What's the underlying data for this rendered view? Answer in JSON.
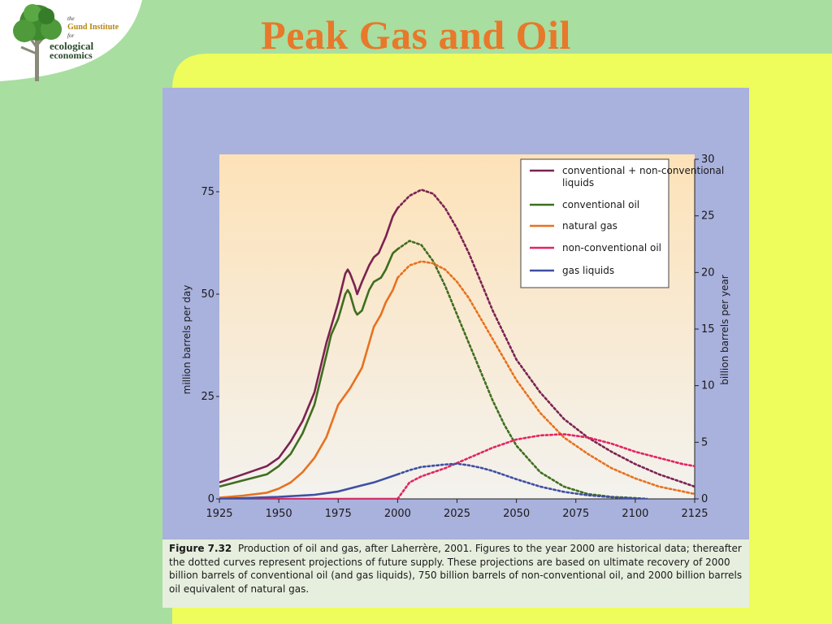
{
  "slide": {
    "title": "Peak Gas and Oil",
    "logo": {
      "line1": "the",
      "line2": "Gund Institute",
      "line3": "for",
      "line4": "ecological",
      "line5": "economics"
    }
  },
  "caption": {
    "label": "Figure 7.32",
    "text": "Production of oil and gas, after Laherrère, 2001. Figures to the year 2000 are historical data; thereafter the dotted curves represent projections of future supply. These projections are based on ultimate recovery of 2000 billion barrels of conventional oil (and gas liquids), 750 billion barrels of non-conventional oil, and 2000 billion barrels oil equivalent of natural gas."
  },
  "colors": {
    "background": "#a8dea0",
    "slide_panel": "#eefc5c",
    "title": "#e8782a",
    "plot_bg_top": "#fde2b8",
    "plot_bg_bottom": "#f3f2ee"
  },
  "chart_data": {
    "type": "line",
    "title": "",
    "xlabel": "",
    "ylabel": "million barrels per day",
    "ylabel_right": "billion barrels per year",
    "xlim": [
      1925,
      2125
    ],
    "ylim": [
      0,
      75
    ],
    "ylim_right": [
      0,
      30
    ],
    "x_ticks": [
      1925,
      1950,
      1975,
      2000,
      2025,
      2050,
      2075,
      2100,
      2125
    ],
    "y_ticks": [
      0,
      25,
      50,
      75
    ],
    "y_ticks_right": [
      0,
      5,
      10,
      15,
      20,
      25,
      30
    ],
    "historical_until": 2000,
    "note": "Solid segments are historical data up to 2000; dotted segments are projections",
    "legend_position": "top-right",
    "series": [
      {
        "name": "conventional + non-conventional liquids",
        "color": "#7b2351",
        "x": [
          1925,
          1935,
          1945,
          1950,
          1955,
          1960,
          1965,
          1970,
          1972,
          1975,
          1978,
          1979,
          1980,
          1982,
          1983,
          1985,
          1988,
          1990,
          1992,
          1995,
          1998,
          2000,
          2005,
          2010,
          2015,
          2020,
          2025,
          2030,
          2035,
          2040,
          2045,
          2050,
          2060,
          2070,
          2080,
          2090,
          2100,
          2110,
          2120,
          2125
        ],
        "y": [
          4,
          6,
          8,
          10,
          14,
          19,
          26,
          38,
          42,
          48,
          55,
          56,
          55,
          52,
          50,
          53,
          57,
          59,
          60,
          64,
          69,
          71,
          74,
          75.5,
          74.5,
          71,
          66,
          60,
          53,
          46,
          40,
          34,
          26,
          19.5,
          15,
          11.5,
          8.5,
          6,
          4,
          3
        ]
      },
      {
        "name": "conventional oil",
        "color": "#3f6e1f",
        "x": [
          1925,
          1935,
          1945,
          1950,
          1955,
          1960,
          1965,
          1970,
          1972,
          1975,
          1978,
          1979,
          1980,
          1982,
          1983,
          1985,
          1988,
          1990,
          1993,
          1995,
          1998,
          2000,
          2005,
          2010,
          2015,
          2020,
          2025,
          2030,
          2035,
          2040,
          2045,
          2050,
          2060,
          2070,
          2080,
          2090,
          2100,
          2105
        ],
        "y": [
          3,
          4.5,
          6,
          8,
          11,
          16,
          23,
          35,
          40,
          44,
          50,
          51,
          50,
          46,
          45,
          46,
          51,
          53,
          54,
          56,
          60,
          61,
          63,
          62,
          58,
          52,
          45,
          38,
          31,
          24,
          18,
          13,
          6.5,
          3,
          1.2,
          0.5,
          0.2,
          0
        ]
      },
      {
        "name": "natural gas",
        "color": "#e8711f",
        "x": [
          1925,
          1935,
          1945,
          1950,
          1955,
          1960,
          1965,
          1970,
          1975,
          1980,
          1985,
          1990,
          1993,
          1995,
          1998,
          2000,
          2005,
          2010,
          2015,
          2020,
          2025,
          2030,
          2035,
          2040,
          2045,
          2050,
          2060,
          2070,
          2080,
          2090,
          2100,
          2110,
          2120,
          2125
        ],
        "y": [
          0.3,
          0.8,
          1.5,
          2.5,
          4,
          6.5,
          10,
          15,
          23,
          27,
          32,
          42,
          45,
          48,
          51,
          54,
          57,
          58,
          57.5,
          56,
          53,
          49,
          44,
          39,
          34,
          29,
          21,
          15,
          11,
          7.5,
          5,
          3,
          1.8,
          1.2
        ]
      },
      {
        "name": "non-conventional oil",
        "color": "#e32462",
        "x": [
          1925,
          1950,
          1975,
          1990,
          1995,
          2000,
          2005,
          2010,
          2020,
          2030,
          2040,
          2050,
          2060,
          2070,
          2080,
          2090,
          2100,
          2110,
          2120,
          2125
        ],
        "y": [
          0,
          0,
          0,
          0,
          0,
          0,
          4,
          5.5,
          7.5,
          10,
          12.5,
          14.5,
          15.5,
          15.8,
          15,
          13.5,
          11.5,
          10,
          8.5,
          8
        ]
      },
      {
        "name": "gas liquids",
        "color": "#3f4fa3",
        "x": [
          1925,
          1950,
          1965,
          1975,
          1985,
          1990,
          1995,
          2000,
          2005,
          2010,
          2015,
          2020,
          2025,
          2030,
          2035,
          2040,
          2050,
          2060,
          2070,
          2080,
          2090,
          2100,
          2105
        ],
        "y": [
          0,
          0.5,
          1,
          1.8,
          3.3,
          4,
          5,
          6,
          7,
          7.8,
          8.1,
          8.4,
          8.6,
          8.2,
          7.6,
          6.8,
          4.8,
          3,
          1.7,
          0.9,
          0.4,
          0.1,
          0
        ]
      }
    ]
  }
}
